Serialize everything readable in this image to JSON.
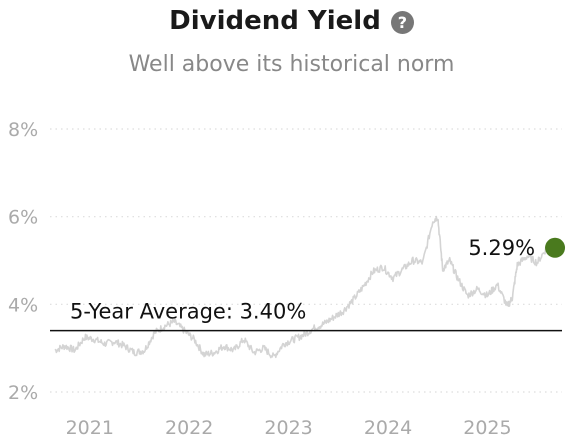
{
  "header": {
    "title": "Dividend Yield",
    "subtitle": "Well above its historical norm",
    "help_icon": "question-circle-icon"
  },
  "colors": {
    "line": "#d4d4d4",
    "average_line": "#111111",
    "current_marker": "#4a7a1e",
    "grid": "#dddddd",
    "tick_text": "#aaaaaa"
  },
  "chart_data": {
    "type": "line",
    "title": "Dividend Yield",
    "subtitle": "Well above its historical norm",
    "xlabel": "",
    "ylabel": "",
    "ylim": [
      2,
      8
    ],
    "y_ticks": [
      {
        "value": 8,
        "label": "8%"
      },
      {
        "value": 6,
        "label": "6%"
      },
      {
        "value": 4,
        "label": "4%"
      },
      {
        "value": 2,
        "label": "2%"
      }
    ],
    "x_ticks": [
      {
        "value": 2021.0,
        "label": "2021"
      },
      {
        "value": 2022.0,
        "label": "2022"
      },
      {
        "value": 2023.0,
        "label": "2023"
      },
      {
        "value": 2024.0,
        "label": "2024"
      },
      {
        "value": 2025.0,
        "label": "2025"
      }
    ],
    "xlim": [
      2020.6,
      2025.75
    ],
    "grid": true,
    "series": [
      {
        "x": [
          2020.65,
          2020.75,
          2020.85,
          2020.95,
          2021.05,
          2021.15,
          2021.25,
          2021.35,
          2021.45,
          2021.55,
          2021.65,
          2021.75,
          2021.85,
          2021.95,
          2022.05,
          2022.15,
          2022.25,
          2022.35,
          2022.45,
          2022.55,
          2022.65,
          2022.75,
          2022.85,
          2022.95,
          2023.05,
          2023.15,
          2023.25,
          2023.35,
          2023.45,
          2023.55,
          2023.65,
          2023.75,
          2023.85,
          2023.95,
          2024.05,
          2024.15,
          2024.25,
          2024.35,
          2024.45,
          2024.5,
          2024.55,
          2024.62,
          2024.7,
          2024.8,
          2024.9,
          2025.0,
          2025.1,
          2025.2,
          2025.25,
          2025.3,
          2025.4,
          2025.5,
          2025.6,
          2025.68
        ],
        "values": [
          2.95,
          3.05,
          2.95,
          3.25,
          3.2,
          3.1,
          3.15,
          3.05,
          2.9,
          2.95,
          3.35,
          3.5,
          3.6,
          3.4,
          3.2,
          2.85,
          2.9,
          3.05,
          2.95,
          3.2,
          2.9,
          3.0,
          2.8,
          3.1,
          3.2,
          3.3,
          3.45,
          3.55,
          3.7,
          3.85,
          4.1,
          4.4,
          4.75,
          4.85,
          4.6,
          4.8,
          5.0,
          4.95,
          5.9,
          6.0,
          4.8,
          5.0,
          4.6,
          4.2,
          4.35,
          4.2,
          4.45,
          3.95,
          4.15,
          4.9,
          5.1,
          4.95,
          5.3,
          5.29
        ]
      }
    ],
    "average": {
      "value": 3.4,
      "label": "5-Year Average: 3.40%"
    },
    "current": {
      "x": 2025.68,
      "value": 5.29,
      "label": "5.29%"
    }
  }
}
